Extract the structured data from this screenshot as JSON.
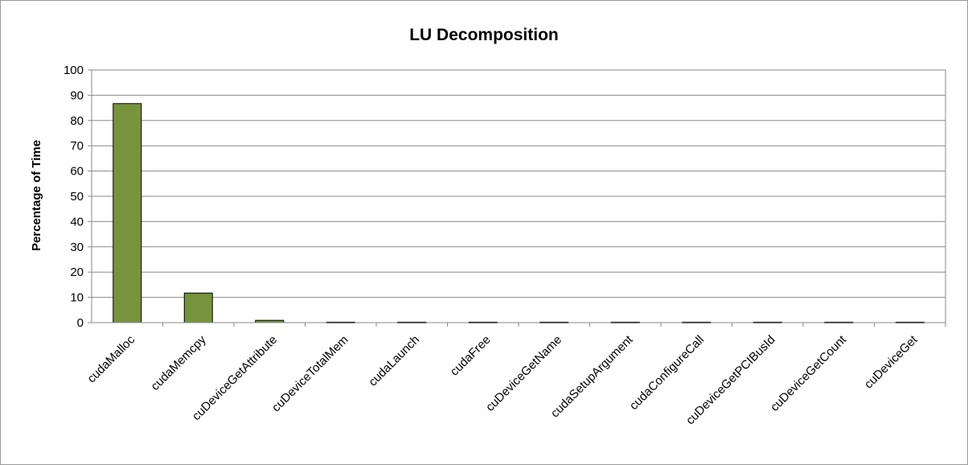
{
  "chart_data": {
    "type": "bar",
    "title": "LU Decomposition",
    "xlabel": "",
    "ylabel": "Percentage of Time",
    "ylim": [
      0,
      100
    ],
    "yticks": [
      "0",
      "10",
      "20",
      "30",
      "40",
      "50",
      "60",
      "70",
      "80",
      "90",
      "100"
    ],
    "grid": true,
    "legend": "none",
    "bar_color": "#77933c",
    "bar_edge_color": "#000000",
    "categories": [
      "cudaMalloc",
      "cudaMemcpy",
      "cuDeviceGetAttribute",
      "cuDeviceTotalMem",
      "cudaLaunch",
      "cudaFree",
      "cuDeviceGetName",
      "cudaSetupArgument",
      "cudaConfigureCall",
      "cuDeviceGetPCIBusId",
      "cuDeviceGetCount",
      "cuDeviceGet"
    ],
    "values": [
      86.7,
      11.7,
      0.9,
      0.2,
      0.2,
      0.2,
      0.2,
      0.2,
      0.2,
      0.2,
      0.2,
      0.2
    ]
  }
}
